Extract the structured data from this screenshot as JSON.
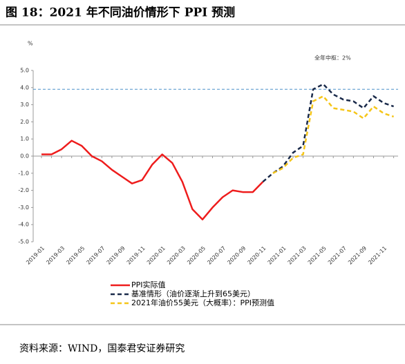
{
  "title": "图 18：2021 年不同油价情形下 PPI 预测",
  "source": "资料来源：WIND，国泰君安证券研究",
  "chart_data": {
    "type": "line",
    "y_unit": "%",
    "annotation": "全年中枢：2%",
    "reference_line": {
      "value": 3.9,
      "color": "#4a90c8"
    },
    "categories": [
      "2019-01",
      null,
      "2019-03",
      null,
      "2019-05",
      null,
      "2019-07",
      null,
      "2019-09",
      null,
      "2019-11",
      null,
      "2020-01",
      null,
      "2020-03",
      null,
      "2020-05",
      null,
      "2020-07",
      null,
      "2020-09",
      null,
      "2020-11",
      null,
      "2021-01",
      null,
      "2021-03",
      null,
      "2021-05",
      null,
      "2021-07",
      null,
      "2021-09",
      null,
      "2021-11",
      null
    ],
    "series": [
      {
        "name": "PPI实际值",
        "color": "#ee1c1c",
        "dash": false,
        "values": [
          0.1,
          0.1,
          0.4,
          0.9,
          0.6,
          0.0,
          -0.3,
          -0.8,
          -1.2,
          -1.6,
          -1.4,
          -0.5,
          0.1,
          -0.4,
          -1.5,
          -3.1,
          -3.7,
          -3.0,
          -2.4,
          -2.0,
          -2.1,
          -2.1,
          -1.5,
          null,
          null,
          null,
          null,
          null,
          null,
          null,
          null,
          null,
          null,
          null,
          null,
          null
        ]
      },
      {
        "name": "基准情形（油价逐渐上升到65美元）",
        "color": "#1a2a4a",
        "dash": true,
        "values": [
          null,
          null,
          null,
          null,
          null,
          null,
          null,
          null,
          null,
          null,
          null,
          null,
          null,
          null,
          null,
          null,
          null,
          null,
          null,
          null,
          null,
          null,
          -1.5,
          -1.0,
          -0.6,
          0.2,
          0.6,
          3.9,
          4.2,
          3.6,
          3.3,
          3.2,
          2.8,
          3.5,
          3.1,
          2.9
        ]
      },
      {
        "name": "2021年油价55美元（大概率）：PPI预测值",
        "color": "#f5c518",
        "dash": true,
        "values": [
          null,
          null,
          null,
          null,
          null,
          null,
          null,
          null,
          null,
          null,
          null,
          null,
          null,
          null,
          null,
          null,
          null,
          null,
          null,
          null,
          null,
          null,
          null,
          -1.0,
          -0.7,
          -0.1,
          0.1,
          3.2,
          3.5,
          2.8,
          2.7,
          2.6,
          2.2,
          2.9,
          2.5,
          2.3
        ]
      }
    ],
    "ylim": [
      -5,
      5
    ],
    "yticks": [
      {
        "value": -5,
        "label": "-5.0"
      },
      {
        "value": -4,
        "label": "-4.0"
      },
      {
        "value": -3,
        "label": "-3.0"
      },
      {
        "value": -2,
        "label": "-2.0"
      },
      {
        "value": -1,
        "label": "-1.0"
      },
      {
        "value": 0,
        "label": "0.0"
      },
      {
        "value": 1,
        "label": "1.0"
      },
      {
        "value": 2,
        "label": "2.0"
      },
      {
        "value": 3,
        "label": "3.0"
      },
      {
        "value": 4,
        "label": "4.0"
      },
      {
        "value": 5,
        "label": "5.0"
      }
    ]
  }
}
